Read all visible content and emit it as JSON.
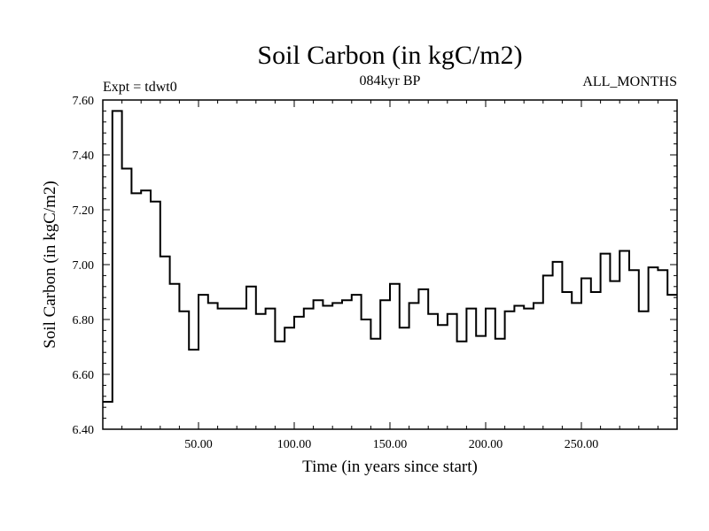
{
  "chart_data": {
    "type": "line",
    "step": true,
    "title": "Soil Carbon (in kgC/m2)",
    "subtitle": "084kyr BP",
    "left_note": "Expt = tdwt0",
    "right_note": "ALL_MONTHS",
    "xlabel": "Time (in years since start)",
    "ylabel": "Soil Carbon (in kgC/m2)",
    "xlim": [
      0,
      300
    ],
    "ylim": [
      6.4,
      7.6
    ],
    "x_ticks": [
      50,
      100,
      150,
      200,
      250
    ],
    "x_tick_labels": [
      "50.00",
      "100.00",
      "150.00",
      "200.00",
      "250.00"
    ],
    "y_ticks": [
      6.4,
      6.6,
      6.8,
      7.0,
      7.2,
      7.4,
      7.6
    ],
    "y_tick_labels": [
      "6.40",
      "6.60",
      "6.80",
      "7.00",
      "7.20",
      "7.40",
      "7.60"
    ],
    "step_width": 5,
    "series": [
      {
        "name": "Soil Carbon",
        "color": "#000000",
        "values": [
          6.5,
          7.56,
          7.35,
          7.26,
          7.27,
          7.23,
          7.03,
          6.93,
          6.83,
          6.69,
          6.89,
          6.86,
          6.84,
          6.84,
          6.84,
          6.92,
          6.82,
          6.84,
          6.72,
          6.77,
          6.81,
          6.84,
          6.87,
          6.85,
          6.86,
          6.87,
          6.89,
          6.8,
          6.73,
          6.87,
          6.93,
          6.77,
          6.86,
          6.91,
          6.82,
          6.78,
          6.82,
          6.72,
          6.84,
          6.74,
          6.84,
          6.73,
          6.83,
          6.85,
          6.84,
          6.86,
          6.96,
          7.01,
          6.9,
          6.86,
          6.95,
          6.9,
          7.04,
          6.94,
          7.05,
          6.98,
          6.83,
          6.99,
          6.98,
          6.89
        ]
      }
    ]
  }
}
